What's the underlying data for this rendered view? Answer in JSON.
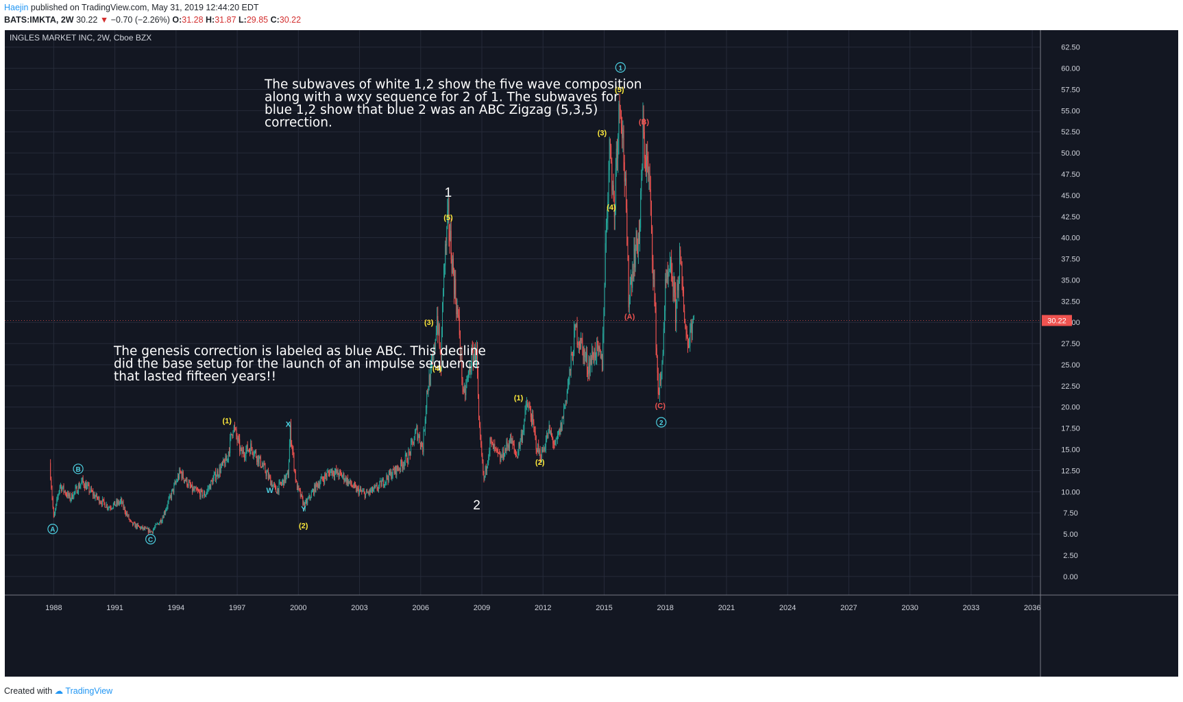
{
  "header": {
    "author": "Haejin",
    "published": "published on TradingView.com, May 31, 2019 12:44:20 EDT"
  },
  "quote": {
    "symbol": "BATS:IMKTA, 2W",
    "last": "30.22",
    "change": "−0.70 (−2.26%)",
    "o_label": "O:",
    "o": "31.28",
    "h_label": "H:",
    "h": "31.87",
    "l_label": "L:",
    "l": "29.85",
    "c_label": "C:",
    "c": "30.22"
  },
  "footer": {
    "created": "Created with",
    "brand": "TradingView"
  },
  "colors": {
    "background": "#131722",
    "grid": "#262b3a",
    "up": "#26a69a",
    "down": "#ef5350",
    "yellow": "#ffeb3b",
    "cyan": "#4dd0e1",
    "red_label": "#ef5350",
    "price_tag": "#ef5350"
  },
  "chart_data": {
    "type": "candlestick",
    "title": "INGLES MARKET INC, 2W, Cboe BZX",
    "x_ticks": [
      "1988",
      "1991",
      "1994",
      "1997",
      "2000",
      "2003",
      "2006",
      "2009",
      "2012",
      "2015",
      "2018",
      "2021",
      "2024",
      "2027",
      "2030",
      "2033",
      "2036"
    ],
    "y_ticks": [
      "62.50",
      "60.00",
      "57.50",
      "55.00",
      "52.50",
      "50.00",
      "47.50",
      "45.00",
      "42.50",
      "40.00",
      "37.50",
      "35.00",
      "32.50",
      "30.00",
      "27.50",
      "25.00",
      "22.50",
      "20.00",
      "17.50",
      "15.00",
      "12.50",
      "10.00",
      "7.50",
      "5.00",
      "2.50",
      "0.00"
    ],
    "xlim": [
      1985.6,
      2036.4
    ],
    "ylim": [
      -2.2,
      64.5
    ],
    "last_price": 30.22,
    "last_price_label": "30.22",
    "price_path": [
      [
        1987.8,
        13.4
      ],
      [
        1988.0,
        6.8
      ],
      [
        1988.3,
        10.8
      ],
      [
        1988.8,
        9.2
      ],
      [
        1989.4,
        11.2
      ],
      [
        1990.0,
        9.5
      ],
      [
        1990.7,
        8.2
      ],
      [
        1991.3,
        8.8
      ],
      [
        1991.8,
        6.2
      ],
      [
        1992.4,
        5.6
      ],
      [
        1992.8,
        5.3
      ],
      [
        1993.3,
        6.8
      ],
      [
        1993.9,
        10.5
      ],
      [
        1994.2,
        12.3
      ],
      [
        1994.8,
        10.2
      ],
      [
        1995.4,
        9.6
      ],
      [
        1995.9,
        11.8
      ],
      [
        1996.5,
        13.8
      ],
      [
        1996.8,
        17.8
      ],
      [
        1997.2,
        14.5
      ],
      [
        1997.7,
        15.3
      ],
      [
        1998.3,
        12.8
      ],
      [
        1998.9,
        10.1
      ],
      [
        1999.5,
        12.0
      ],
      [
        1999.6,
        17.3
      ],
      [
        1999.9,
        10.8
      ],
      [
        2000.3,
        8.3
      ],
      [
        2000.9,
        10.8
      ],
      [
        2001.6,
        12.5
      ],
      [
        2002.2,
        11.8
      ],
      [
        2002.8,
        10.3
      ],
      [
        2003.3,
        9.7
      ],
      [
        2003.9,
        10.5
      ],
      [
        2004.4,
        11.8
      ],
      [
        2004.9,
        12.8
      ],
      [
        2005.4,
        14.2
      ],
      [
        2005.8,
        17.2
      ],
      [
        2006.1,
        15.2
      ],
      [
        2006.3,
        21.8
      ],
      [
        2006.6,
        25.2
      ],
      [
        2006.8,
        30.8
      ],
      [
        2007.0,
        24.8
      ],
      [
        2007.1,
        34.8
      ],
      [
        2007.35,
        42.3
      ],
      [
        2007.6,
        35.8
      ],
      [
        2007.9,
        28.8
      ],
      [
        2008.1,
        20.8
      ],
      [
        2008.5,
        25.8
      ],
      [
        2008.75,
        26.5
      ],
      [
        2008.85,
        17.8
      ],
      [
        2009.1,
        11.3
      ],
      [
        2009.4,
        15.8
      ],
      [
        2009.9,
        13.8
      ],
      [
        2010.4,
        16.2
      ],
      [
        2010.7,
        14.2
      ],
      [
        2011.0,
        17.2
      ],
      [
        2011.2,
        20.3
      ],
      [
        2011.4,
        19.2
      ],
      [
        2011.7,
        15.2
      ],
      [
        2011.9,
        14.2
      ],
      [
        2012.3,
        17.2
      ],
      [
        2012.6,
        15.3
      ],
      [
        2012.9,
        17.8
      ],
      [
        2013.3,
        23.8
      ],
      [
        2013.6,
        29.2
      ],
      [
        2013.9,
        27.2
      ],
      [
        2014.2,
        24.8
      ],
      [
        2014.6,
        26.8
      ],
      [
        2014.9,
        25.2
      ],
      [
        2015.1,
        41.8
      ],
      [
        2015.3,
        51.8
      ],
      [
        2015.5,
        42.2
      ],
      [
        2015.6,
        50.5
      ],
      [
        2015.8,
        57.2
      ],
      [
        2016.0,
        47.8
      ],
      [
        2016.2,
        33.2
      ],
      [
        2016.5,
        38.2
      ],
      [
        2016.75,
        40.8
      ],
      [
        2016.9,
        52.2
      ],
      [
        2017.2,
        46.8
      ],
      [
        2017.4,
        36.8
      ],
      [
        2017.65,
        21.8
      ],
      [
        2017.8,
        23.2
      ],
      [
        2018.0,
        33.8
      ],
      [
        2018.3,
        36.2
      ],
      [
        2018.5,
        31.2
      ],
      [
        2018.7,
        37.5
      ],
      [
        2018.9,
        31.8
      ],
      [
        2019.1,
        27.2
      ],
      [
        2019.25,
        29.8
      ],
      [
        2019.41,
        30.22
      ]
    ],
    "labels": [
      {
        "text": "1",
        "x": 2007.35,
        "y": 45.4,
        "color": "white",
        "size": "big"
      },
      {
        "text": "2",
        "x": 2008.75,
        "y": 8.5,
        "color": "white",
        "size": "big"
      },
      {
        "text": "(5)",
        "x": 2007.35,
        "y": 42.4,
        "color": "yellow"
      },
      {
        "text": "(3)",
        "x": 2006.4,
        "y": 30.0,
        "color": "yellow"
      },
      {
        "text": "(4)",
        "x": 2006.8,
        "y": 24.6,
        "color": "yellow"
      },
      {
        "text": "(1)",
        "x": 1996.5,
        "y": 18.4,
        "color": "yellow"
      },
      {
        "text": "(2)",
        "x": 2000.25,
        "y": 6.0,
        "color": "yellow"
      },
      {
        "text": "X",
        "x": 1999.5,
        "y": 18.0,
        "color": "cyan"
      },
      {
        "text": "W",
        "x": 1998.6,
        "y": 10.2,
        "color": "cyan"
      },
      {
        "text": "Y",
        "x": 2000.25,
        "y": 8.0,
        "color": "cyan"
      },
      {
        "text": "A",
        "x": 1987.95,
        "y": 5.6,
        "color": "cyan",
        "circle": true
      },
      {
        "text": "B",
        "x": 1989.2,
        "y": 12.7,
        "color": "cyan",
        "circle": true
      },
      {
        "text": "C",
        "x": 1992.75,
        "y": 4.4,
        "color": "cyan",
        "circle": true
      },
      {
        "text": "(1)",
        "x": 2010.8,
        "y": 21.1,
        "color": "yellow"
      },
      {
        "text": "(2)",
        "x": 2011.85,
        "y": 13.5,
        "color": "yellow"
      },
      {
        "text": "(3)",
        "x": 2014.9,
        "y": 52.4,
        "color": "yellow"
      },
      {
        "text": "(4)",
        "x": 2015.35,
        "y": 43.6,
        "color": "yellow"
      },
      {
        "text": "(5)",
        "x": 2015.75,
        "y": 57.5,
        "color": "yellow"
      },
      {
        "text": "1",
        "x": 2015.8,
        "y": 60.1,
        "color": "cyan",
        "circle": true
      },
      {
        "text": "(B)",
        "x": 2016.95,
        "y": 53.7,
        "color": "red"
      },
      {
        "text": "(A)",
        "x": 2016.25,
        "y": 30.7,
        "color": "red"
      },
      {
        "text": "(C)",
        "x": 2017.75,
        "y": 20.2,
        "color": "red"
      },
      {
        "text": "2",
        "x": 2017.8,
        "y": 18.2,
        "color": "cyan",
        "circle": true
      }
    ],
    "annotations": [
      {
        "lines": [
          "The subwaves of white 1,2 show the five wave composition",
          "along with a wxy sequence for 2 of 1. The subwaves for",
          "blue 1,2 show that blue 2 was an ABC Zigzag (5,3,5)",
          "correction."
        ],
        "x": 386,
        "y": 113
      },
      {
        "lines": [
          "The genesis correction is labeled as blue ABC. This decline",
          "did the base setup for the launch of an impulse sequence",
          "that lasted fifteen years!!"
        ],
        "x": 166,
        "y": 502
      }
    ]
  }
}
